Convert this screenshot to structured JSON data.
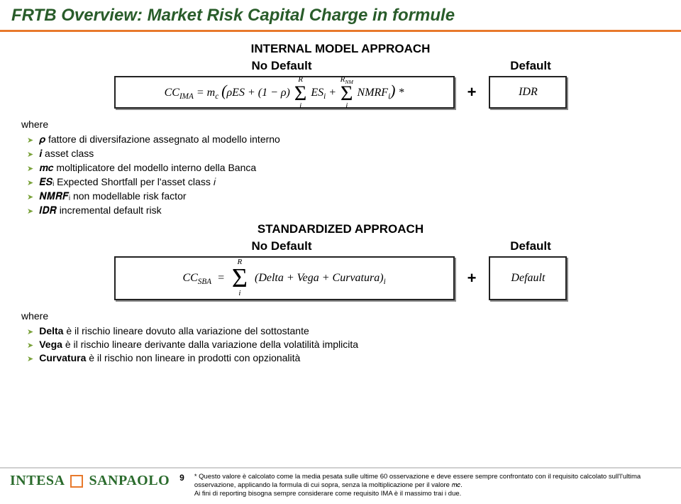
{
  "title": "FRTB Overview: Market Risk Capital Charge in formule",
  "ima": {
    "heading": "INTERNAL MODEL APPROACH",
    "noDefaultLabel": "No Default",
    "defaultLabel": "Default",
    "formula_html": "CC<sub>IMA</sub> = m<sub>c</sub> (ρES + (1 − ρ) Σ<sub>i</sub><sup>R</sup> ES<sub>i</sub> + Σ<sub>i</sub><sup>R<sub>NM</sub></sup> NMRF<sub>i</sub>) *",
    "rhs": "IDR",
    "plus": "+"
  },
  "where1": {
    "head": "where",
    "items": [
      "𝝆 fattore di diversifazione assegnato al modello interno",
      "𝒊 asset class",
      "𝒎𝒄 moltiplicatore del modello interno della Banca",
      "𝑬𝑺ᵢ Expected Shortfall per l'asset class 𝑖",
      "𝑵𝑴𝑹𝑭ᵢ non modellable risk factor",
      "𝑰𝑫𝑹 incremental default risk"
    ]
  },
  "sba": {
    "heading": "STANDARDIZED APPROACH",
    "noDefaultLabel": "No Default",
    "defaultLabel": "Default",
    "lhs": "CC_{SBA} =",
    "rhs": "Default",
    "plus": "+",
    "body": "(Delta + Vega + Curvatura)"
  },
  "where2": {
    "head": "where",
    "items": [
      "Delta è il rischio lineare dovuto alla variazione del sottostante",
      "Vega è il rischio lineare derivante dalla variazione della volatilità implicita",
      "Curvatura è il rischio non lineare in prodotti con opzionalità"
    ]
  },
  "footer": {
    "logo1": "INTESA",
    "logo2": "SANPAOLO",
    "page": "9",
    "note": "* Questo valore è calcolato come la media pesata sulle ultime 60 osservazione e deve essere sempre confrontato con il requisito calcolato sull'l'ultima osservazione, applicando la formula di cui sopra, senza la moltiplicazione per il valore 𝑚𝑐.\nAi fini di reporting bisogna sempre considerare come requisito IMA è il massimo trai i due."
  },
  "colors": {
    "titleColor": "#295c2a",
    "accent": "#e8792c",
    "bullet": "#7aa23a"
  }
}
